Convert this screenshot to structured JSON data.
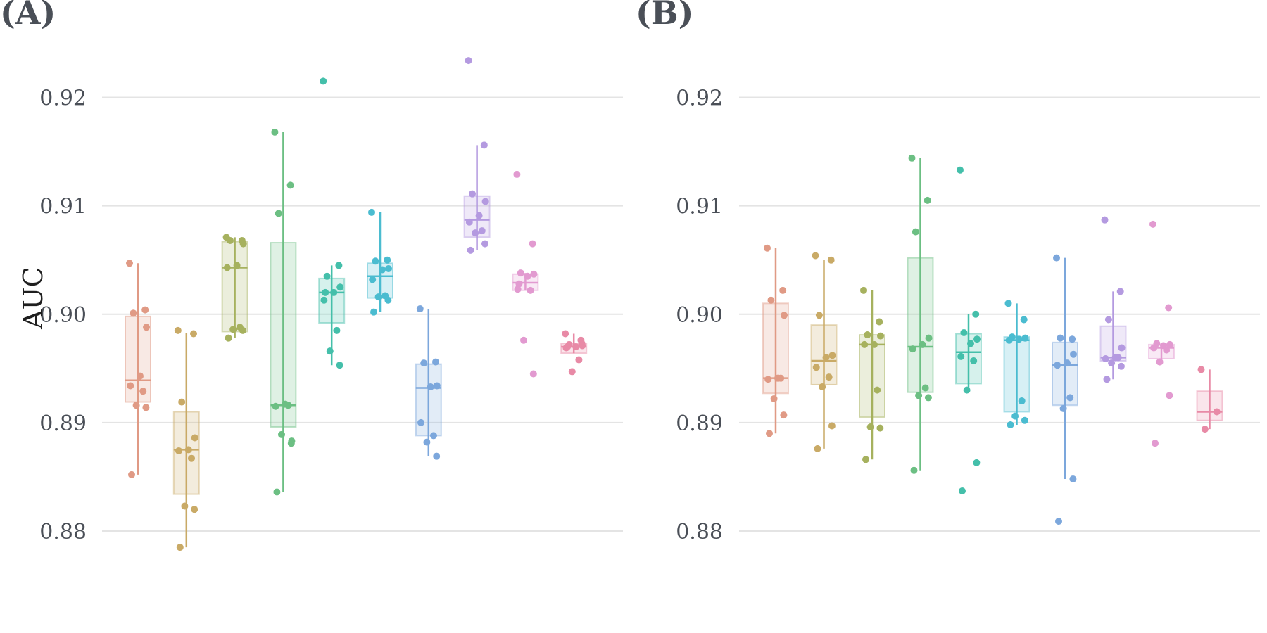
{
  "chart_data": [
    {
      "panel_label": "(A)",
      "type": "box",
      "ylabel": "AUC",
      "ylim": [
        0.8765,
        0.9265
      ],
      "yticks": [
        "0.88",
        "0.89",
        "0.90",
        "0.91",
        "0.92"
      ],
      "grid": true,
      "groups": [
        {
          "color": "#e09a85",
          "q1": 0.8919,
          "median": 0.8939,
          "q3": 0.8998,
          "whisker_low": 0.8852,
          "whisker_high": 0.9047,
          "points": [
            0.9047,
            0.9004,
            0.9001,
            0.8988,
            0.8943,
            0.8934,
            0.8929,
            0.8916,
            0.8914,
            0.8852
          ]
        },
        {
          "color": "#c9aa66",
          "q1": 0.8834,
          "median": 0.8875,
          "q3": 0.891,
          "whisker_low": 0.8785,
          "whisker_high": 0.8983,
          "points": [
            0.8985,
            0.8982,
            0.8919,
            0.8886,
            0.8875,
            0.8874,
            0.8867,
            0.8823,
            0.882,
            0.8785
          ]
        },
        {
          "color": "#a6b15e",
          "q1": 0.8984,
          "median": 0.9043,
          "q3": 0.9067,
          "whisker_low": 0.8978,
          "whisker_high": 0.9071,
          "points": [
            0.9071,
            0.9068,
            0.9068,
            0.9065,
            0.9045,
            0.9043,
            0.8988,
            0.8986,
            0.8985,
            0.8978
          ]
        },
        {
          "color": "#6cbf83",
          "q1": 0.8896,
          "median": 0.8916,
          "q3": 0.9066,
          "whisker_low": 0.8836,
          "whisker_high": 0.9168,
          "points": [
            0.9168,
            0.9119,
            0.9093,
            0.8883,
            0.8917,
            0.8915,
            0.8916,
            0.8889,
            0.8881,
            0.8836
          ]
        },
        {
          "color": "#44bfaa",
          "q1": 0.8992,
          "median": 0.902,
          "q3": 0.9033,
          "whisker_low": 0.8953,
          "whisker_high": 0.9045,
          "points": [
            0.9215,
            0.9045,
            0.9035,
            0.9025,
            0.902,
            0.9013,
            0.8985,
            0.8966,
            0.8953,
            0.902
          ]
        },
        {
          "color": "#4bbcd0",
          "q1": 0.9015,
          "median": 0.9035,
          "q3": 0.9047,
          "whisker_low": 0.9002,
          "whisker_high": 0.9094,
          "points": [
            0.9094,
            0.905,
            0.9049,
            0.9042,
            0.9041,
            0.9032,
            0.9017,
            0.9016,
            0.9013,
            0.9002
          ]
        },
        {
          "color": "#7ca7dc",
          "q1": 0.8888,
          "median": 0.8932,
          "q3": 0.8954,
          "whisker_low": 0.8869,
          "whisker_high": 0.9005,
          "points": [
            0.9005,
            0.8956,
            0.8955,
            0.8934,
            0.8933,
            0.89,
            0.8888,
            0.8882,
            0.8869
          ]
        },
        {
          "color": "#b49ae0",
          "q1": 0.9071,
          "median": 0.9087,
          "q3": 0.9109,
          "whisker_low": 0.9059,
          "whisker_high": 0.9156,
          "points": [
            0.9234,
            0.9156,
            0.9111,
            0.9104,
            0.9091,
            0.9085,
            0.9077,
            0.9075,
            0.9065,
            0.9059
          ]
        },
        {
          "color": "#e29ad0",
          "q1": 0.9022,
          "median": 0.9029,
          "q3": 0.9037,
          "whisker_low": 0.9022,
          "whisker_high": 0.9038,
          "points": [
            0.9129,
            0.9065,
            0.9038,
            0.9037,
            0.9035,
            0.9023,
            0.9022,
            0.8976,
            0.8945,
            0.9028
          ]
        },
        {
          "color": "#e88aa6",
          "q1": 0.8964,
          "median": 0.897,
          "q3": 0.8973,
          "whisker_low": 0.8964,
          "whisker_high": 0.8982,
          "points": [
            0.8982,
            0.8976,
            0.8972,
            0.8971,
            0.897,
            0.8969,
            0.8958,
            0.8947,
            0.8973,
            0.897
          ]
        }
      ]
    },
    {
      "panel_label": "(B)",
      "type": "box",
      "ylabel": "",
      "ylim": [
        0.8765,
        0.9265
      ],
      "yticks": [
        "0.88",
        "0.89",
        "0.90",
        "0.91",
        "0.92"
      ],
      "grid": true,
      "groups": [
        {
          "color": "#e09a85",
          "q1": 0.8927,
          "median": 0.8941,
          "q3": 0.901,
          "whisker_low": 0.889,
          "whisker_high": 0.9061,
          "points": [
            0.9061,
            0.9022,
            0.9013,
            0.8999,
            0.8941,
            0.894,
            0.8941,
            0.8922,
            0.8907,
            0.889
          ]
        },
        {
          "color": "#c9aa66",
          "q1": 0.8935,
          "median": 0.8957,
          "q3": 0.899,
          "whisker_low": 0.8876,
          "whisker_high": 0.905,
          "points": [
            0.9054,
            0.905,
            0.8999,
            0.8962,
            0.896,
            0.8951,
            0.8942,
            0.8933,
            0.8897,
            0.8876
          ]
        },
        {
          "color": "#a6b15e",
          "q1": 0.8905,
          "median": 0.8972,
          "q3": 0.8981,
          "whisker_low": 0.8866,
          "whisker_high": 0.9022,
          "points": [
            0.9022,
            0.8993,
            0.8981,
            0.898,
            0.8972,
            0.8972,
            0.893,
            0.8896,
            0.8895,
            0.8866
          ]
        },
        {
          "color": "#6cbf83",
          "q1": 0.8928,
          "median": 0.897,
          "q3": 0.9052,
          "whisker_low": 0.8856,
          "whisker_high": 0.9144,
          "points": [
            0.9144,
            0.9105,
            0.9076,
            0.8978,
            0.8972,
            0.8968,
            0.8932,
            0.8925,
            0.8923,
            0.8856
          ]
        },
        {
          "color": "#44bfaa",
          "q1": 0.8936,
          "median": 0.8965,
          "q3": 0.8982,
          "whisker_low": 0.893,
          "whisker_high": 0.9,
          "points": [
            0.9133,
            0.9,
            0.8983,
            0.8977,
            0.8973,
            0.8961,
            0.8957,
            0.893,
            0.8863,
            0.8837
          ]
        },
        {
          "color": "#4bbcd0",
          "q1": 0.891,
          "median": 0.8976,
          "q3": 0.8979,
          "whisker_low": 0.8898,
          "whisker_high": 0.901,
          "points": [
            0.901,
            0.8995,
            0.8979,
            0.8978,
            0.8977,
            0.8976,
            0.892,
            0.8906,
            0.8902,
            0.8898
          ]
        },
        {
          "color": "#7ca7dc",
          "q1": 0.8916,
          "median": 0.8953,
          "q3": 0.8974,
          "whisker_low": 0.8848,
          "whisker_high": 0.9052,
          "points": [
            0.9052,
            0.8977,
            0.8978,
            0.8963,
            0.8955,
            0.8953,
            0.8923,
            0.8913,
            0.8848,
            0.8809
          ]
        },
        {
          "color": "#b49ae0",
          "q1": 0.8957,
          "median": 0.896,
          "q3": 0.8989,
          "whisker_low": 0.894,
          "whisker_high": 0.9021,
          "points": [
            0.9087,
            0.9021,
            0.8995,
            0.8969,
            0.896,
            0.8959,
            0.896,
            0.8955,
            0.8952,
            0.894
          ]
        },
        {
          "color": "#e29ad0",
          "q1": 0.8959,
          "median": 0.8969,
          "q3": 0.8972,
          "whisker_low": 0.8959,
          "whisker_high": 0.8973,
          "points": [
            0.9083,
            0.9006,
            0.8973,
            0.8972,
            0.8971,
            0.8969,
            0.8967,
            0.8956,
            0.8925,
            0.8881
          ]
        },
        {
          "color": "#e88aa6",
          "q1": 0.8902,
          "median": 0.891,
          "q3": 0.8929,
          "whisker_low": 0.8894,
          "whisker_high": 0.8949,
          "points": [
            0.8949,
            0.891,
            0.8894
          ]
        }
      ]
    }
  ]
}
